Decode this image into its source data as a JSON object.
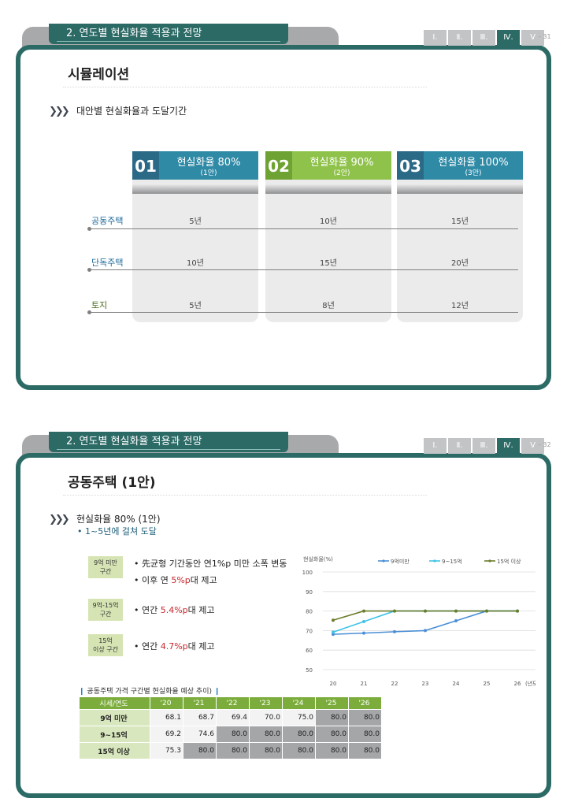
{
  "slides": [
    {
      "section": "2. 연도별 현실화율 적용과 전망",
      "roman": [
        "Ⅰ.",
        "Ⅱ.",
        "Ⅲ.",
        "Ⅳ.",
        "Ⅴ"
      ],
      "active_roman": 3,
      "page": "- 31",
      "title": "시뮬레이션",
      "subtitle": "대안별 현실화율과 도달기간",
      "columns": [
        {
          "num": "01",
          "title": "현실화율 80%",
          "sub": "(1안)",
          "color": "#2f8aa6",
          "num_color": "#2b6a86"
        },
        {
          "num": "02",
          "title": "현실화율 90%",
          "sub": "(2안)",
          "color": "#8fc24a",
          "num_color": "#6ea232"
        },
        {
          "num": "03",
          "title": "현실화율 100%",
          "sub": "(3안)",
          "color": "#2f8aa6",
          "num_color": "#2b6a86"
        }
      ],
      "rows": [
        {
          "label": "공동주택",
          "values": [
            "5년",
            "10년",
            "15년"
          ]
        },
        {
          "label": "단독주택",
          "values": [
            "10년",
            "15년",
            "20년"
          ]
        },
        {
          "label": "토지",
          "values": [
            "5년",
            "8년",
            "12년"
          ]
        }
      ]
    },
    {
      "section": "2. 연도별 현실화율 적용과 전망",
      "roman": [
        "Ⅰ.",
        "Ⅱ.",
        "Ⅲ.",
        "Ⅳ.",
        "Ⅴ"
      ],
      "active_roman": 3,
      "page": "- 32",
      "title": "공동주택 (1안)",
      "subtitle": "현실화율 80% (1안)",
      "bullet_heading": "• 1~5년에 걸쳐 도달",
      "groups": [
        {
          "label1": "9억 미만",
          "label2": "구간",
          "lines": [
            {
              "pre": "• 先균형 기간동안 연1%p 미만 소폭 변동",
              "red": "",
              "post": ""
            },
            {
              "pre": "• 이후 연 ",
              "red": "5%p",
              "post": "대 제고"
            }
          ]
        },
        {
          "label1": "9억-15억",
          "label2": "구간",
          "lines": [
            {
              "pre": "• 연간 ",
              "red": "5.4%p",
              "post": "대 제고"
            }
          ]
        },
        {
          "label1": "15억",
          "label2": "이상 구간",
          "lines": [
            {
              "pre": "• 연간 ",
              "red": "4.7%p",
              "post": "대 제고"
            }
          ]
        }
      ],
      "chart_data": {
        "type": "line",
        "ylabel": "현실화율(%)",
        "xlabel": "(년도)",
        "x": [
          "20",
          "21",
          "22",
          "23",
          "24",
          "25",
          "26"
        ],
        "ylim": [
          50,
          100
        ],
        "yticks": [
          "100",
          "90",
          "80",
          "70",
          "60",
          "50"
        ],
        "grid": true,
        "legend": "top",
        "series": [
          {
            "name": "9억미만",
            "color": "#4a8fd6",
            "values": [
              68.1,
              68.7,
              69.4,
              70.0,
              75.0,
              80.0,
              80.0
            ]
          },
          {
            "name": "9~15억",
            "color": "#3fc3e6",
            "values": [
              69.2,
              74.6,
              80.0,
              80.0,
              80.0,
              80.0,
              80.0
            ]
          },
          {
            "name": "15억 이상",
            "color": "#6b7d2a",
            "values": [
              75.3,
              80.0,
              80.0,
              80.0,
              80.0,
              80.0,
              80.0
            ]
          }
        ]
      },
      "table": {
        "caption_left": "❙",
        "caption": " 공동주택 가격 구간별 현실화율 예상 추이) ",
        "caption_right": "❙",
        "header": [
          "시세/연도",
          "'20",
          "'21",
          "'22",
          "'23",
          "'24",
          "'25",
          "'26"
        ],
        "rows": [
          {
            "label": "9억 미만",
            "values": [
              "68.1",
              "68.7",
              "69.4",
              "70.0",
              "75.0",
              "80.0",
              "80.0"
            ]
          },
          {
            "label": "9~15억",
            "values": [
              "69.2",
              "74.6",
              "80.0",
              "80.0",
              "80.0",
              "80.0",
              "80.0"
            ]
          },
          {
            "label": "15억 이상",
            "values": [
              "75.3",
              "80.0",
              "80.0",
              "80.0",
              "80.0",
              "80.0",
              "80.0"
            ]
          }
        ]
      }
    }
  ]
}
